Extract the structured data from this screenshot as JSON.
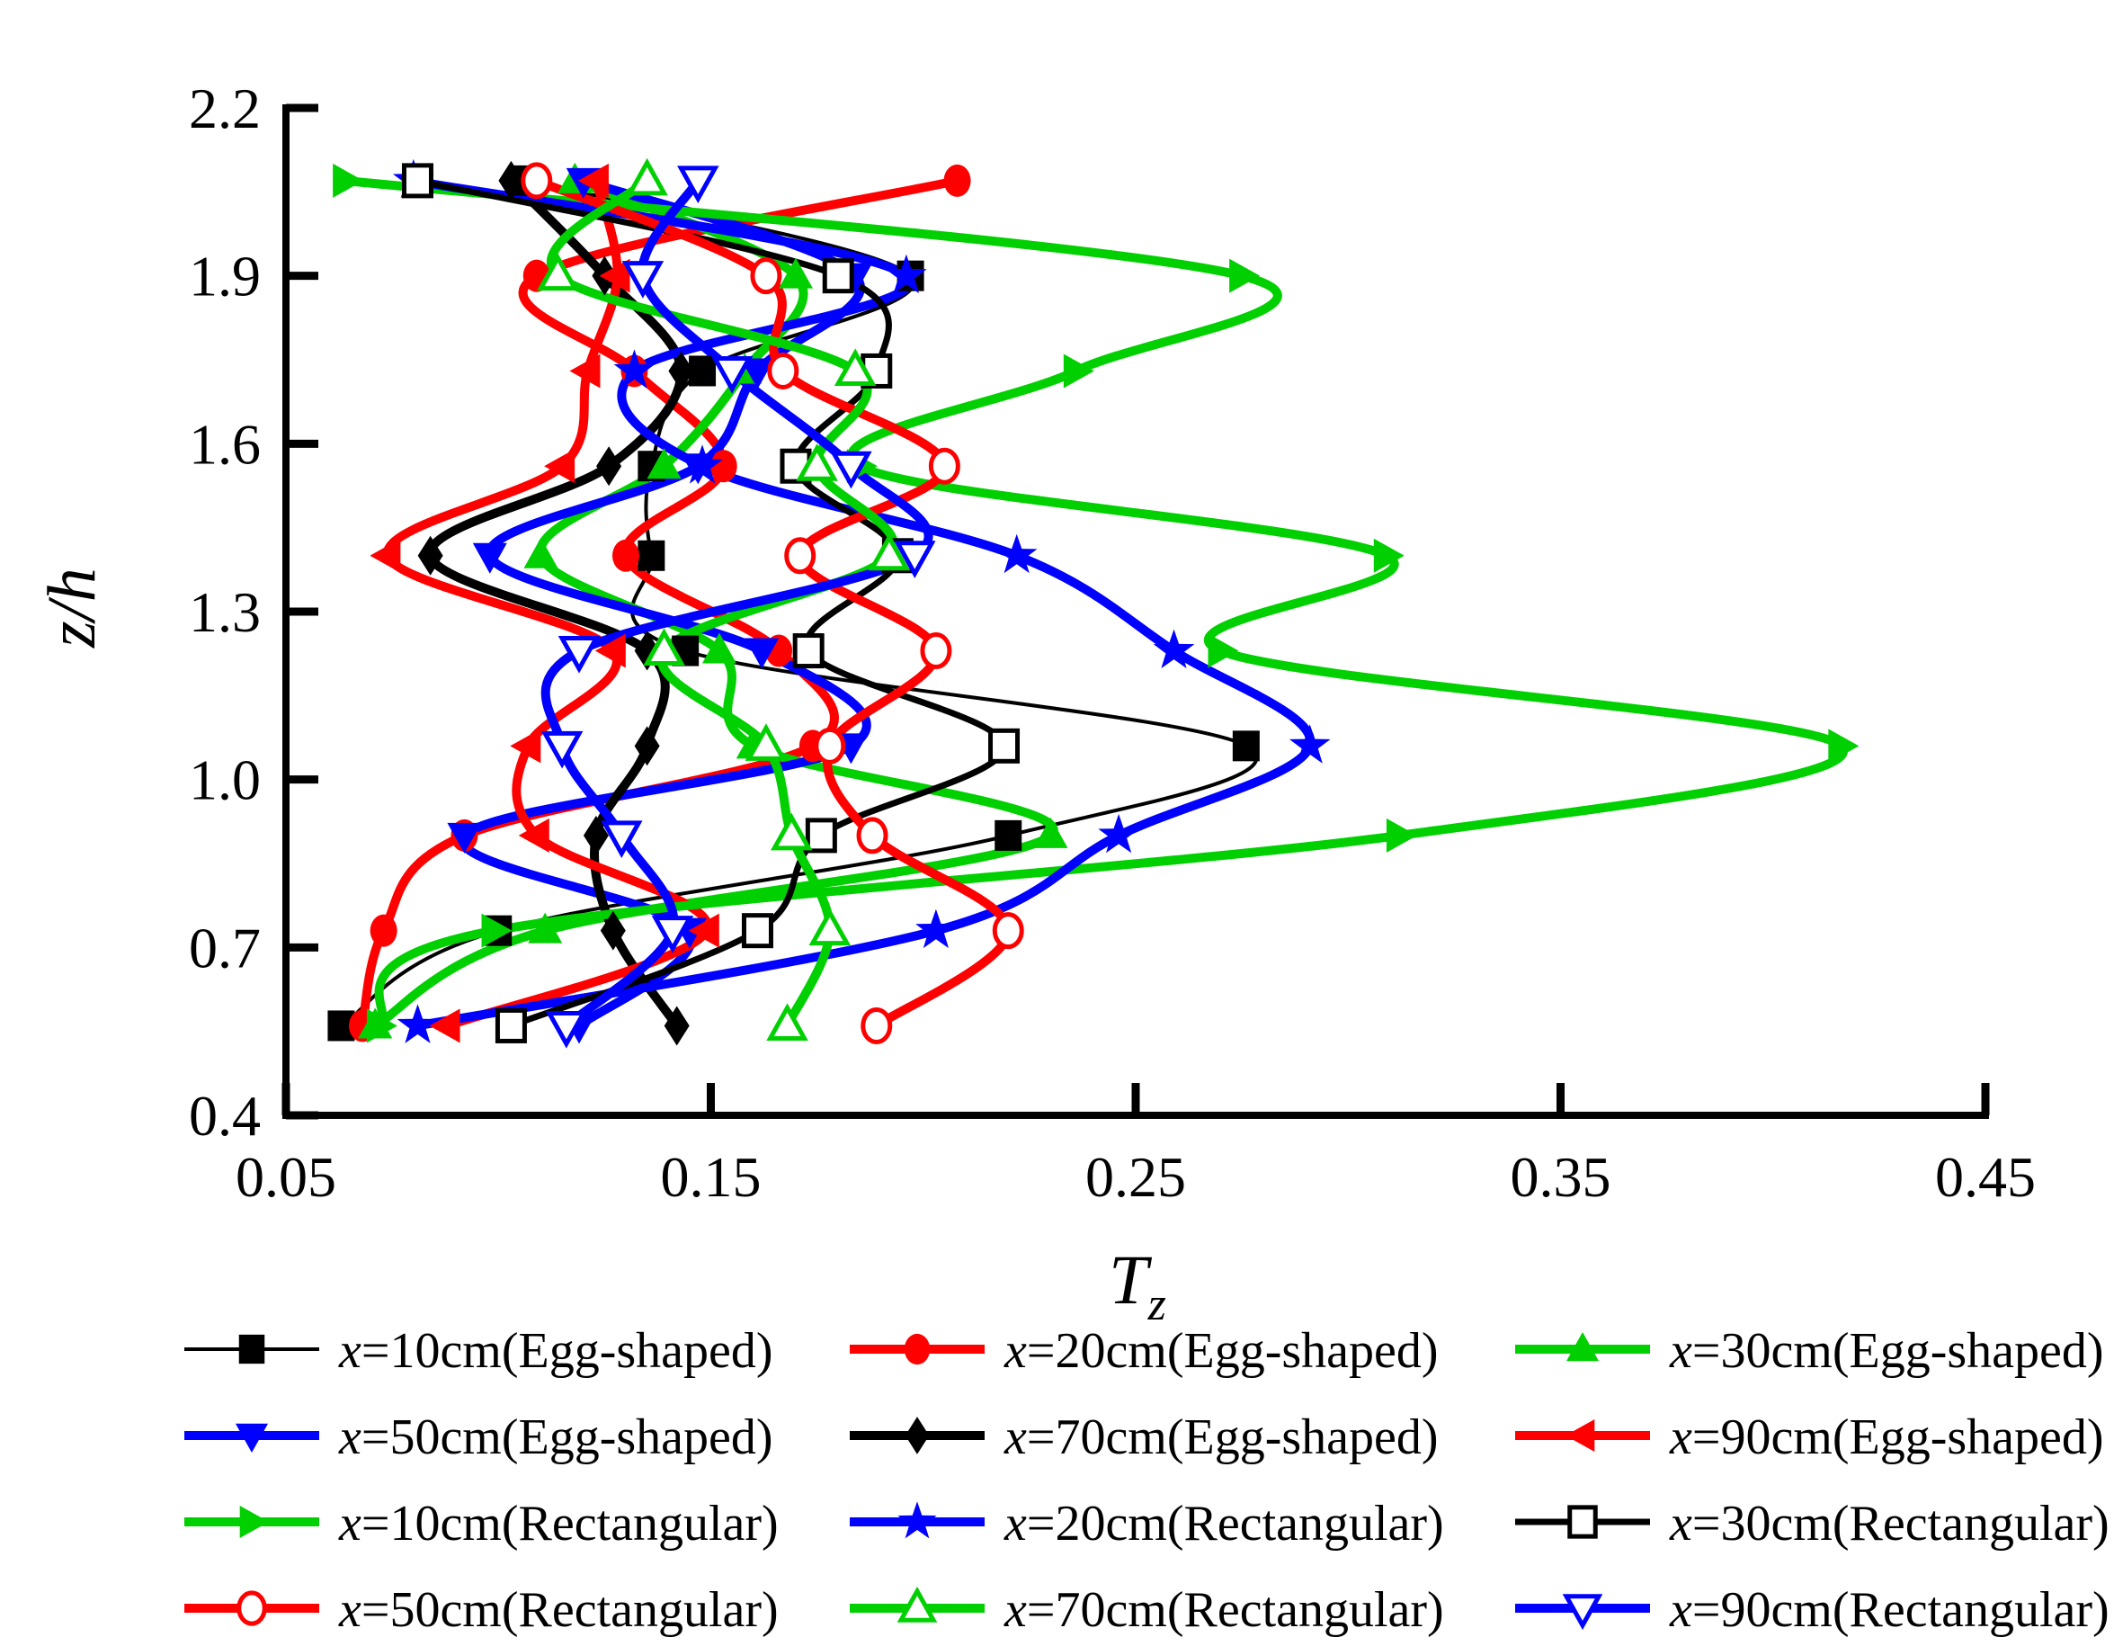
{
  "chart_data": {
    "type": "line",
    "title": "",
    "xlabel_main": "T",
    "xlabel_sub": "z",
    "ylabel": "z/h",
    "xlim": [
      0.05,
      0.45
    ],
    "ylim": [
      0.4,
      2.2
    ],
    "grid": false,
    "legend_position": "bottom",
    "x_ticks": [
      0.05,
      0.15,
      0.25,
      0.35,
      0.45
    ],
    "x_tick_labels": [
      "0.05",
      "0.15",
      "0.25",
      "0.35",
      "0.45"
    ],
    "y_ticks": [
      0.4,
      0.7,
      1.0,
      1.3,
      1.6,
      1.9,
      2.2
    ],
    "y_tick_labels": [
      "0.4",
      "0.7",
      "1.0",
      "1.3",
      "1.6",
      "1.9",
      "2.2"
    ],
    "z_levels": [
      0.56,
      0.73,
      0.9,
      1.06,
      1.23,
      1.4,
      1.56,
      1.73,
      1.9,
      2.07
    ],
    "series": [
      {
        "label_prefix": "x",
        "label_rest": "=10cm(Egg-shaped)",
        "color": "#000000",
        "marker": "square",
        "open": false,
        "line_width": 4,
        "values": [
          0.063,
          0.1,
          0.22,
          0.276,
          0.144,
          0.136,
          0.136,
          0.148,
          0.197,
          0.106
        ]
      },
      {
        "label_prefix": "x",
        "label_rest": "=20cm(Egg-shaped)",
        "color": "#FF0000",
        "marker": "circle",
        "open": false,
        "line_width": 10,
        "values": [
          0.068,
          0.073,
          0.092,
          0.174,
          0.166,
          0.13,
          0.153,
          0.132,
          0.109,
          0.208
        ]
      },
      {
        "label_prefix": "x",
        "label_rest": "=30cm(Egg-shaped)",
        "color": "#00D000",
        "marker": "triangle-up",
        "open": false,
        "line_width": 10,
        "values": [
          0.071,
          0.111,
          0.23,
          0.16,
          0.152,
          0.11,
          0.139,
          0.158,
          0.17,
          0.118
        ]
      },
      {
        "label_prefix": "x",
        "label_rest": "=50cm(Egg-shaped)",
        "color": "#0000FF",
        "marker": "triangle-down",
        "open": false,
        "line_width": 10,
        "values": [
          0.119,
          0.145,
          0.092,
          0.183,
          0.162,
          0.098,
          0.147,
          0.161,
          0.184,
          0.12
        ]
      },
      {
        "label_prefix": "x",
        "label_rest": "=70cm(Egg-shaped)",
        "color": "#000000",
        "marker": "diamond",
        "open": false,
        "line_width": 10,
        "values": [
          0.142,
          0.127,
          0.123,
          0.135,
          0.135,
          0.084,
          0.126,
          0.143,
          0.125,
          0.103
        ]
      },
      {
        "label_prefix": "x",
        "label_rest": "=90cm(Egg-shaped)",
        "color": "#FF0000",
        "marker": "triangle-left",
        "open": false,
        "line_width": 10,
        "values": [
          0.088,
          0.149,
          0.109,
          0.107,
          0.127,
          0.074,
          0.115,
          0.121,
          0.128,
          0.123
        ]
      },
      {
        "label_prefix": "x",
        "label_rest": "=10cm(Rectangular)",
        "color": "#00D000",
        "marker": "triangle-right",
        "open": false,
        "line_width": 10,
        "values": [
          0.072,
          0.099,
          0.312,
          0.416,
          0.27,
          0.309,
          0.185,
          0.236,
          0.275,
          0.064
        ]
      },
      {
        "label_prefix": "x",
        "label_rest": "=20cm(Rectangular)",
        "color": "#0000FF",
        "marker": "star",
        "open": false,
        "line_width": 10,
        "values": [
          0.081,
          0.203,
          0.246,
          0.291,
          0.259,
          0.222,
          0.148,
          0.132,
          0.196,
          0.08
        ]
      },
      {
        "label_prefix": "x",
        "label_rest": "=30cm(Rectangular)",
        "color": "#000000",
        "marker": "square",
        "open": true,
        "line_width": 7,
        "values": [
          0.103,
          0.161,
          0.176,
          0.219,
          0.173,
          0.194,
          0.17,
          0.189,
          0.18,
          0.081
        ]
      },
      {
        "label_prefix": "x",
        "label_rest": "=50cm(Rectangular)",
        "color": "#FF0000",
        "marker": "circle",
        "open": true,
        "line_width": 10,
        "values": [
          0.189,
          0.22,
          0.188,
          0.178,
          0.203,
          0.171,
          0.205,
          0.167,
          0.163,
          0.109
        ]
      },
      {
        "label_prefix": "x",
        "label_rest": "=70cm(Rectangular)",
        "color": "#00D000",
        "marker": "triangle-up",
        "open": true,
        "line_width": 10,
        "values": [
          0.168,
          0.178,
          0.169,
          0.163,
          0.139,
          0.192,
          0.175,
          0.184,
          0.114,
          0.135
        ]
      },
      {
        "label_prefix": "x",
        "label_rest": "=90cm(Rectangular)",
        "color": "#0000FF",
        "marker": "triangle-down",
        "open": true,
        "line_width": 10,
        "values": [
          0.116,
          0.141,
          0.129,
          0.115,
          0.119,
          0.198,
          0.183,
          0.155,
          0.134,
          0.147
        ]
      }
    ]
  },
  "colors": {
    "axis": "#000000",
    "background": "#FFFFFF",
    "red": "#FF0000",
    "green": "#00D000",
    "blue": "#0000FF",
    "black": "#000000"
  }
}
